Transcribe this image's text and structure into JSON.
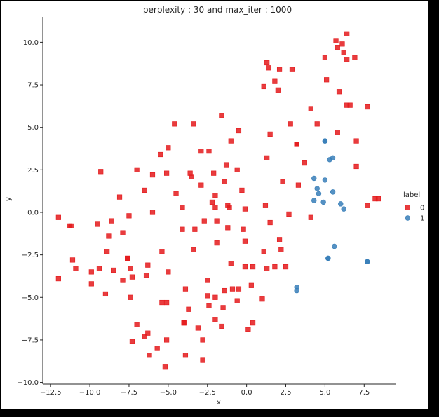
{
  "chart_data": {
    "type": "scatter",
    "title": "perplexity : 30 and max_iter : 1000",
    "xlabel": "x",
    "ylabel": "y",
    "xlim": [
      -13.0,
      9.5
    ],
    "ylim": [
      -10.1,
      11.5
    ],
    "x_ticks": [
      -12.5,
      -10.0,
      -7.5,
      -5.0,
      -2.5,
      0.0,
      2.5,
      5.0,
      7.5
    ],
    "x_tick_labels": [
      "−12.5",
      "−10.0",
      "−7.5",
      "−5.0",
      "−2.5",
      "0.0",
      "2.5",
      "5.0",
      "7.5"
    ],
    "y_ticks": [
      -10.0,
      -7.5,
      -5.0,
      -2.5,
      0.0,
      2.5,
      5.0,
      7.5,
      10.0
    ],
    "y_tick_labels": [
      "−10.0",
      "−7.5",
      "−5.0",
      "−2.5",
      "0.0",
      "2.5",
      "5.0",
      "7.5",
      "10.0"
    ],
    "grid": false,
    "legend": {
      "title": "label",
      "placement": "right",
      "entries": [
        {
          "label": "0",
          "color": "#e41a1c",
          "marker": "square"
        },
        {
          "label": "1",
          "color": "#377eb8",
          "marker": "circle"
        }
      ]
    },
    "series": [
      {
        "name": "0",
        "color": "#e41a1c",
        "marker": "square",
        "points": [
          [
            6.4,
            10.5
          ],
          [
            5.7,
            10.1
          ],
          [
            6.1,
            9.9
          ],
          [
            5.8,
            9.7
          ],
          [
            6.2,
            9.4
          ],
          [
            6.9,
            9.1
          ],
          [
            5.0,
            9.1
          ],
          [
            6.4,
            9.0
          ],
          [
            1.3,
            8.8
          ],
          [
            1.4,
            8.5
          ],
          [
            2.1,
            8.4
          ],
          [
            2.9,
            8.4
          ],
          [
            5.1,
            7.8
          ],
          [
            1.8,
            7.7
          ],
          [
            1.1,
            7.4
          ],
          [
            2.0,
            7.2
          ],
          [
            5.9,
            7.1
          ],
          [
            6.4,
            6.3
          ],
          [
            6.6,
            6.3
          ],
          [
            7.7,
            6.2
          ],
          [
            4.1,
            6.1
          ],
          [
            -1.6,
            5.7
          ],
          [
            4.5,
            5.2
          ],
          [
            -4.6,
            5.2
          ],
          [
            -3.4,
            5.2
          ],
          [
            2.8,
            5.2
          ],
          [
            -0.5,
            4.8
          ],
          [
            5.8,
            4.7
          ],
          [
            1.5,
            4.6
          ],
          [
            -1.0,
            4.2
          ],
          [
            7.0,
            4.2
          ],
          [
            3.2,
            4.0
          ],
          [
            3.2,
            4.0
          ],
          [
            -5.0,
            3.8
          ],
          [
            -2.9,
            3.6
          ],
          [
            -2.4,
            3.6
          ],
          [
            -5.5,
            3.4
          ],
          [
            1.3,
            3.2
          ],
          [
            -1.3,
            2.8
          ],
          [
            3.7,
            2.9
          ],
          [
            7.0,
            2.7
          ],
          [
            -0.6,
            2.5
          ],
          [
            -7.0,
            2.5
          ],
          [
            -9.3,
            2.4
          ],
          [
            -5.1,
            2.3
          ],
          [
            -3.6,
            2.3
          ],
          [
            -2.1,
            2.3
          ],
          [
            -6.0,
            2.2
          ],
          [
            -3.5,
            2.1
          ],
          [
            -1.4,
            1.8
          ],
          [
            2.3,
            1.8
          ],
          [
            -2.9,
            1.6
          ],
          [
            3.3,
            1.6
          ],
          [
            -6.5,
            1.3
          ],
          [
            -0.3,
            1.3
          ],
          [
            -4.5,
            1.1
          ],
          [
            -2.0,
            1.0
          ],
          [
            -8.1,
            0.9
          ],
          [
            -2.2,
            0.6
          ],
          [
            -1.1,
            0.3
          ],
          [
            -2.0,
            0.3
          ],
          [
            -4.1,
            0.3
          ],
          [
            -0.1,
            0.2
          ],
          [
            -1.2,
            0.4
          ],
          [
            1.2,
            0.4
          ],
          [
            7.7,
            0.4
          ],
          [
            -6.0,
            0.0
          ],
          [
            2.7,
            -0.1
          ],
          [
            8.2,
            0.8
          ],
          [
            8.4,
            0.8
          ],
          [
            4.1,
            -0.3
          ],
          [
            -12.0,
            -0.3
          ],
          [
            -7.5,
            -0.2
          ],
          [
            -2.7,
            -0.5
          ],
          [
            -1.9,
            -0.5
          ],
          [
            -8.6,
            -0.5
          ],
          [
            1.5,
            -0.6
          ],
          [
            -9.5,
            -0.7
          ],
          [
            -11.3,
            -0.8
          ],
          [
            -11.2,
            -0.8
          ],
          [
            -4.1,
            -1.0
          ],
          [
            -1.2,
            -0.9
          ],
          [
            -0.2,
            -1.0
          ],
          [
            -3.3,
            -1.0
          ],
          [
            -7.9,
            -1.2
          ],
          [
            -8.8,
            -1.4
          ],
          [
            2.1,
            -1.6
          ],
          [
            -0.1,
            -1.7
          ],
          [
            -1.9,
            -1.8
          ],
          [
            -3.4,
            -2.2
          ],
          [
            -5.4,
            -2.3
          ],
          [
            1.1,
            -2.3
          ],
          [
            2.2,
            -2.2
          ],
          [
            -8.9,
            -2.3
          ],
          [
            -7.6,
            -2.7
          ],
          [
            -7.6,
            -2.7
          ],
          [
            -11.1,
            -2.8
          ],
          [
            -1.0,
            -3.0
          ],
          [
            -6.3,
            -3.1
          ],
          [
            0.4,
            -3.2
          ],
          [
            -0.1,
            -3.2
          ],
          [
            1.8,
            -3.2
          ],
          [
            2.5,
            -3.2
          ],
          [
            -9.4,
            -3.3
          ],
          [
            -10.9,
            -3.3
          ],
          [
            -7.4,
            -3.3
          ],
          [
            1.3,
            -3.3
          ],
          [
            -8.5,
            -3.4
          ],
          [
            -5.0,
            -3.5
          ],
          [
            -9.9,
            -3.5
          ],
          [
            -7.3,
            -3.8
          ],
          [
            -6.4,
            -3.7
          ],
          [
            -12.0,
            -3.9
          ],
          [
            -7.9,
            -4.0
          ],
          [
            -2.5,
            -4.0
          ],
          [
            -9.9,
            -4.2
          ],
          [
            0.3,
            -4.3
          ],
          [
            -3.9,
            -4.5
          ],
          [
            -0.9,
            -4.5
          ],
          [
            -0.5,
            -4.5
          ],
          [
            -1.4,
            -4.6
          ],
          [
            -9.0,
            -4.8
          ],
          [
            -2.5,
            -4.9
          ],
          [
            -2.0,
            -5.0
          ],
          [
            -7.4,
            -5.0
          ],
          [
            1.0,
            -5.1
          ],
          [
            -0.6,
            -5.2
          ],
          [
            -5.1,
            -5.3
          ],
          [
            -5.4,
            -5.3
          ],
          [
            -3.7,
            -5.7
          ],
          [
            -2.4,
            -5.5
          ],
          [
            -1.5,
            -5.6
          ],
          [
            -2.0,
            -6.3
          ],
          [
            -4.0,
            -6.5
          ],
          [
            -4.0,
            -6.5
          ],
          [
            0.4,
            -6.5
          ],
          [
            -7.0,
            -6.6
          ],
          [
            -3.1,
            -6.8
          ],
          [
            -1.6,
            -6.7
          ],
          [
            0.1,
            -6.9
          ],
          [
            -6.3,
            -7.1
          ],
          [
            -6.5,
            -7.3
          ],
          [
            -2.8,
            -7.5
          ],
          [
            -5.1,
            -7.5
          ],
          [
            -7.3,
            -7.6
          ],
          [
            -5.7,
            -8.0
          ],
          [
            -3.9,
            -8.4
          ],
          [
            -6.2,
            -8.4
          ],
          [
            -2.8,
            -8.7
          ],
          [
            -5.2,
            -9.1
          ]
        ]
      },
      {
        "name": "1",
        "color": "#377eb8",
        "marker": "circle",
        "points": [
          [
            5.0,
            4.2
          ],
          [
            5.0,
            4.2
          ],
          [
            5.5,
            3.2
          ],
          [
            5.3,
            3.1
          ],
          [
            4.3,
            2.0
          ],
          [
            5.0,
            1.9
          ],
          [
            4.5,
            1.4
          ],
          [
            4.6,
            1.1
          ],
          [
            5.5,
            1.2
          ],
          [
            4.3,
            0.7
          ],
          [
            4.9,
            0.6
          ],
          [
            6.0,
            0.5
          ],
          [
            6.2,
            0.2
          ],
          [
            5.6,
            -2.0
          ],
          [
            5.2,
            -2.7
          ],
          [
            5.2,
            -2.7
          ],
          [
            7.7,
            -2.9
          ],
          [
            7.7,
            -2.9
          ],
          [
            3.2,
            -4.4
          ],
          [
            3.2,
            -4.6
          ]
        ]
      }
    ]
  }
}
